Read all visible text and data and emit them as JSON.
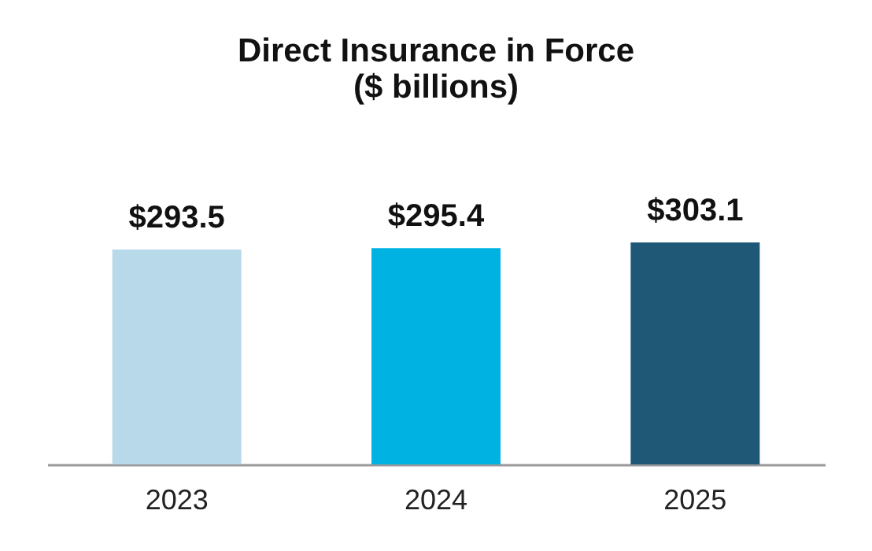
{
  "chart_data": {
    "type": "bar",
    "title": "Direct Insurance in Force\n($ billions)",
    "categories": [
      "2023",
      "2024",
      "2025"
    ],
    "values": [
      293.5,
      295.4,
      303.1
    ],
    "colors": [
      "#b8d9ea",
      "#00b2e2",
      "#1f5876"
    ],
    "value_labels": [
      "$293.5",
      "$295.4",
      "$303.1"
    ]
  }
}
